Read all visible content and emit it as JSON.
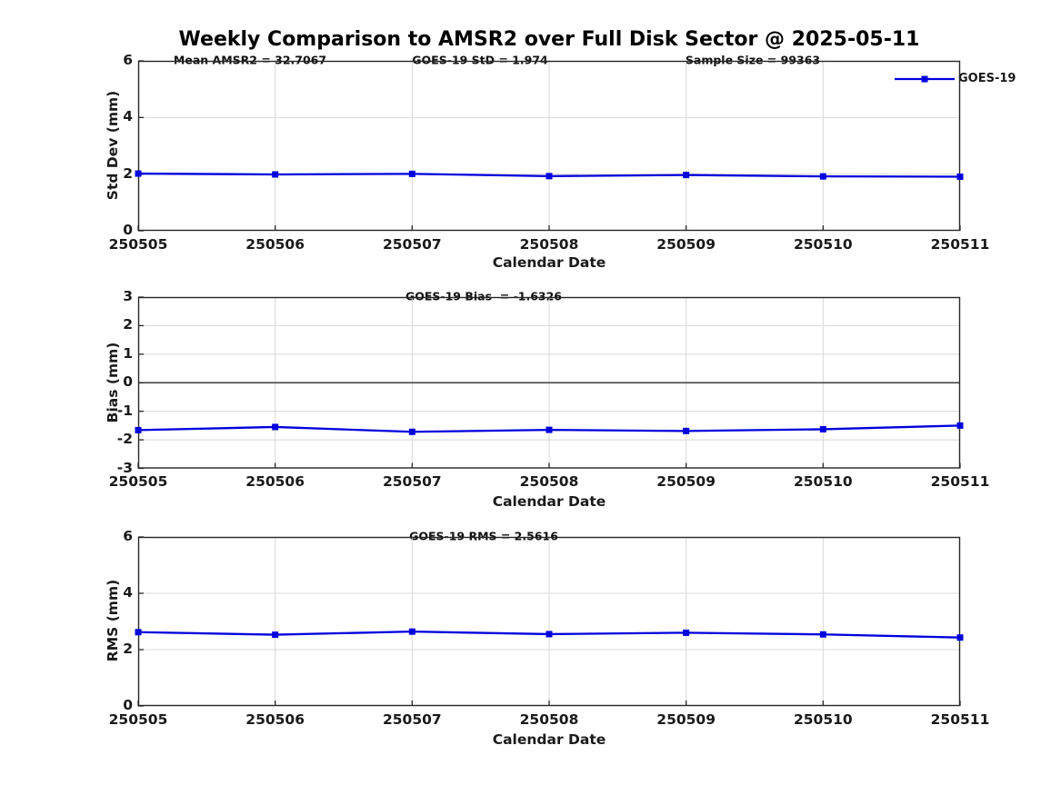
{
  "title": "Weekly Comparison to AMSR2 over Full Disk Sector @ 2025-05-11",
  "legend": {
    "label": "GOES-19"
  },
  "colors": {
    "line": "#0000dd",
    "grid": "#d8d8d8",
    "axis": "#262626",
    "zero_line": "#3c3c3c"
  },
  "chart_data": [
    {
      "id": "std-dev",
      "type": "line",
      "ylabel": "Std Dev (mm)",
      "xlabel": "Calendar Date",
      "annotations": [
        "Mean AMSR2 = 32.7067",
        "GOES-19 StD = 1.974",
        "Sample Size = 99363"
      ],
      "categories": [
        "250505",
        "250506",
        "250507",
        "250508",
        "250509",
        "250510",
        "250511"
      ],
      "ylim": [
        0,
        6
      ],
      "yticks": [
        0,
        2,
        4,
        6
      ],
      "grid_yticks": [
        2,
        4
      ],
      "zero_line": false,
      "legend_entries": [
        "GOES-19"
      ],
      "series": [
        {
          "name": "GOES-19",
          "values": [
            2.02,
            1.99,
            2.01,
            1.93,
            1.97,
            1.92,
            1.91
          ]
        }
      ]
    },
    {
      "id": "bias",
      "type": "line",
      "ylabel": "Bias (mm)",
      "xlabel": "Calendar Date",
      "annotations": [
        "GOES-19 Bias  = -1.6326"
      ],
      "categories": [
        "250505",
        "250506",
        "250507",
        "250508",
        "250509",
        "250510",
        "250511"
      ],
      "ylim": [
        -3,
        3
      ],
      "yticks": [
        -3,
        -2,
        -1,
        0,
        1,
        2,
        3
      ],
      "grid_yticks": [
        -2,
        -1,
        1,
        2
      ],
      "zero_line": true,
      "series": [
        {
          "name": "GOES-19",
          "values": [
            -1.66,
            -1.55,
            -1.72,
            -1.65,
            -1.69,
            -1.63,
            -1.5
          ]
        }
      ]
    },
    {
      "id": "rms",
      "type": "line",
      "ylabel": "RMS (mm)",
      "xlabel": "Calendar Date",
      "annotations": [
        "GOES-19 RMS = 2.5616"
      ],
      "categories": [
        "250505",
        "250506",
        "250507",
        "250508",
        "250509",
        "250510",
        "250511"
      ],
      "ylim": [
        0,
        6
      ],
      "yticks": [
        0,
        2,
        4,
        6
      ],
      "grid_yticks": [
        2,
        4
      ],
      "zero_line": false,
      "series": [
        {
          "name": "GOES-19",
          "values": [
            2.62,
            2.53,
            2.64,
            2.55,
            2.6,
            2.54,
            2.43
          ]
        }
      ]
    }
  ]
}
